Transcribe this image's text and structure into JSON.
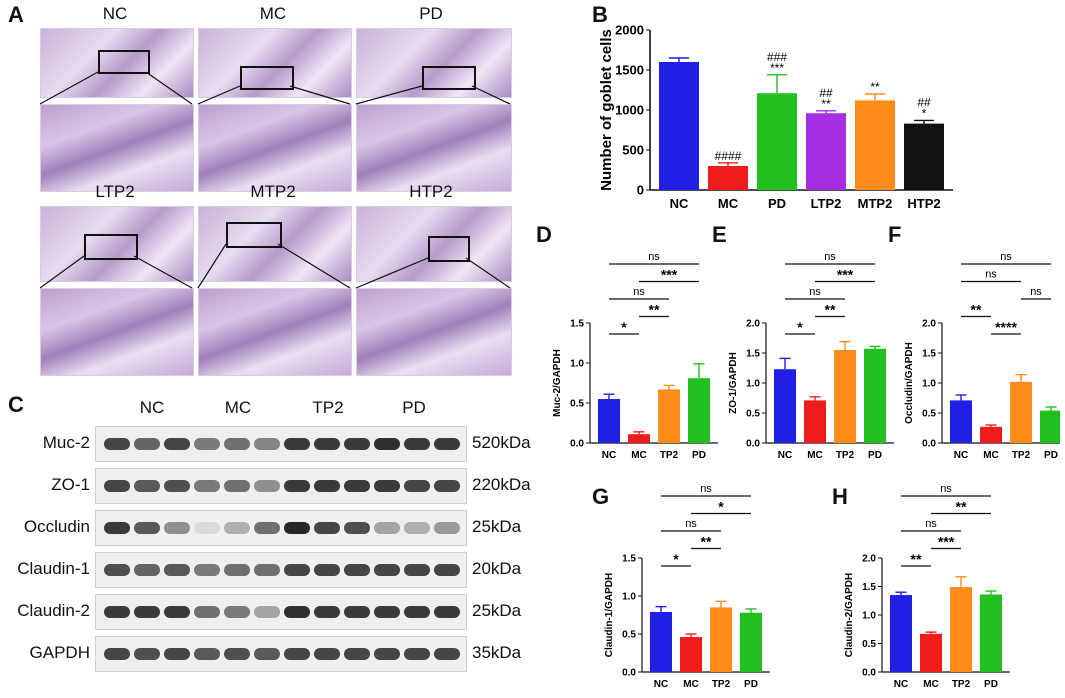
{
  "panels": {
    "A": "A",
    "B": "B",
    "C": "C",
    "D": "D",
    "E": "E",
    "F": "F",
    "G": "G",
    "H": "H"
  },
  "histology": {
    "labels": [
      "NC",
      "MC",
      "PD",
      "LTP2",
      "MTP2",
      "HTP2"
    ]
  },
  "western_blot": {
    "groups": [
      "NC",
      "MC",
      "TP2",
      "PD"
    ],
    "proteins": [
      "Muc-2",
      "ZO-1",
      "Occludin",
      "Claudin-1",
      "Claudin-2",
      "GAPDH"
    ],
    "sizes": [
      "520kDa",
      "220kDa",
      "25kDa",
      "20kDa",
      "25kDa",
      "35kDa"
    ]
  },
  "colors": {
    "blue": "#1f1fe6",
    "red": "#ee1c1c",
    "green": "#22c01f",
    "purple": "#a52ee0",
    "orange": "#ff8c1a",
    "black": "#111111"
  },
  "chart_data": [
    {
      "id": "B",
      "type": "bar",
      "categories": [
        "NC",
        "MC",
        "PD",
        "LTP2",
        "MTP2",
        "HTP2"
      ],
      "values": [
        1600,
        300,
        1210,
        960,
        1120,
        830
      ],
      "errors": [
        50,
        40,
        230,
        30,
        80,
        40
      ],
      "colors": [
        "#1f1fe6",
        "#ee1c1c",
        "#22c01f",
        "#a52ee0",
        "#ff8c1a",
        "#111111"
      ],
      "ylabel": "Number of goblet cells",
      "ylim": [
        0,
        2000
      ],
      "yticks": [
        "0",
        "500",
        "1000",
        "1500",
        "2000"
      ],
      "annotations": [
        [
          "",
          ""
        ],
        [
          "####",
          ""
        ],
        [
          "###",
          "***"
        ],
        [
          "##",
          "**"
        ],
        [
          "**",
          ""
        ],
        [
          "##",
          "*"
        ]
      ]
    },
    {
      "id": "D",
      "type": "bar",
      "categories": [
        "NC",
        "MC",
        "TP2",
        "PD"
      ],
      "values": [
        0.55,
        0.11,
        0.67,
        0.81
      ],
      "errors": [
        0.06,
        0.03,
        0.05,
        0.18
      ],
      "ylabel": "Muc-2/GAPDH",
      "ylim": [
        0,
        1.5
      ],
      "yticks": [
        "0.0",
        "0.5",
        "1.0",
        "1.5"
      ],
      "brackets": [
        {
          "from": 0,
          "to": 1,
          "label": "*"
        },
        {
          "from": 1,
          "to": 2,
          "label": "**"
        },
        {
          "from": 0,
          "to": 2,
          "label": "ns"
        },
        {
          "from": 1,
          "to": 3,
          "label": "***"
        },
        {
          "from": 0,
          "to": 3,
          "label": "ns"
        }
      ]
    },
    {
      "id": "E",
      "type": "bar",
      "categories": [
        "NC",
        "MC",
        "TP2",
        "PD"
      ],
      "values": [
        1.23,
        0.71,
        1.55,
        1.57
      ],
      "errors": [
        0.18,
        0.06,
        0.14,
        0.04
      ],
      "ylabel": "ZO-1/GAPDH",
      "ylim": [
        0,
        2.0
      ],
      "yticks": [
        "0.0",
        "0.5",
        "1.0",
        "1.5",
        "2.0"
      ],
      "brackets": [
        {
          "from": 0,
          "to": 1,
          "label": "*"
        },
        {
          "from": 1,
          "to": 2,
          "label": "**"
        },
        {
          "from": 0,
          "to": 2,
          "label": "ns"
        },
        {
          "from": 1,
          "to": 3,
          "label": "***"
        },
        {
          "from": 0,
          "to": 3,
          "label": "ns"
        }
      ]
    },
    {
      "id": "F",
      "type": "bar",
      "categories": [
        "NC",
        "MC",
        "TP2",
        "PD"
      ],
      "values": [
        0.71,
        0.27,
        1.02,
        0.54
      ],
      "errors": [
        0.09,
        0.03,
        0.12,
        0.06
      ],
      "ylabel": "Occludin/GAPDH",
      "ylim": [
        0,
        2.0
      ],
      "yticks": [
        "0.0",
        "0.5",
        "1.0",
        "1.5",
        "2.0"
      ],
      "brackets": [
        {
          "from": 1,
          "to": 2,
          "label": "****"
        },
        {
          "from": 0,
          "to": 1,
          "label": "**"
        },
        {
          "from": 2,
          "to": 3,
          "label": "ns"
        },
        {
          "from": 0,
          "to": 2,
          "label": "ns"
        },
        {
          "from": 0,
          "to": 3,
          "label": "ns"
        }
      ]
    },
    {
      "id": "G",
      "type": "bar",
      "categories": [
        "NC",
        "MC",
        "TP2",
        "PD"
      ],
      "values": [
        0.79,
        0.46,
        0.85,
        0.78
      ],
      "errors": [
        0.07,
        0.04,
        0.08,
        0.05
      ],
      "ylabel": "Claudin-1/GAPDH",
      "ylim": [
        0,
        1.5
      ],
      "yticks": [
        "0.0",
        "0.5",
        "1.0",
        "1.5"
      ],
      "brackets": [
        {
          "from": 0,
          "to": 1,
          "label": "*"
        },
        {
          "from": 1,
          "to": 2,
          "label": "**"
        },
        {
          "from": 0,
          "to": 2,
          "label": "ns"
        },
        {
          "from": 1,
          "to": 3,
          "label": "*"
        },
        {
          "from": 0,
          "to": 3,
          "label": "ns"
        }
      ]
    },
    {
      "id": "H",
      "type": "bar",
      "categories": [
        "NC",
        "MC",
        "TP2",
        "PD"
      ],
      "values": [
        1.35,
        0.67,
        1.49,
        1.36
      ],
      "errors": [
        0.05,
        0.03,
        0.18,
        0.06
      ],
      "ylabel": "Claudin-2/GAPDH",
      "ylim": [
        0,
        2.0
      ],
      "yticks": [
        "0.0",
        "0.5",
        "1.0",
        "1.5",
        "2.0"
      ],
      "brackets": [
        {
          "from": 0,
          "to": 1,
          "label": "**"
        },
        {
          "from": 1,
          "to": 2,
          "label": "***"
        },
        {
          "from": 0,
          "to": 2,
          "label": "ns"
        },
        {
          "from": 1,
          "to": 3,
          "label": "**"
        },
        {
          "from": 0,
          "to": 3,
          "label": "ns"
        }
      ]
    }
  ]
}
